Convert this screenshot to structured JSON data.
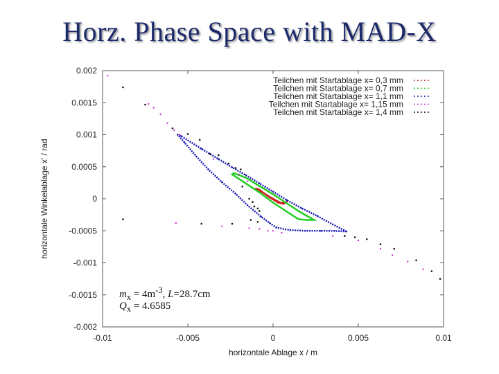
{
  "slide": {
    "title": "Horz. Phase Space with MAD-X"
  },
  "notes": {
    "m_label": "m",
    "m_sub": "x",
    "m_value": " = 4m",
    "m_exp": "-3",
    "l_sep": ", ",
    "l_label": "L",
    "l_value": "=28.7cm",
    "q_label": "Q",
    "q_sub": "x",
    "q_value": " = 4.6585"
  },
  "chart_data": {
    "type": "scatter",
    "xlabel": "horizontale Ablage x / m",
    "ylabel": "horizontale Winkelablage x' / rad",
    "xlim": [
      -0.01,
      0.01
    ],
    "ylim": [
      -0.002,
      0.002
    ],
    "xticks": [
      -0.01,
      -0.005,
      0,
      0.005,
      0.01
    ],
    "xtick_labels": [
      "-0.01",
      "-0.005",
      "0",
      "0.005",
      "0.01"
    ],
    "yticks": [
      -0.002,
      -0.0015,
      -0.001,
      -0.0005,
      0,
      0.0005,
      0.001,
      0.0015,
      0.002
    ],
    "ytick_labels": [
      "-0.002",
      "-0.0015",
      "-0.001",
      "-0.0005",
      "0",
      "0.0005",
      "0.001",
      "0.0015",
      "0.002"
    ],
    "grid": false,
    "legend_position": "top-right",
    "series": [
      {
        "name": "Teilchen mit Startablage x= 0,3 mm",
        "color": "#cc1f1f",
        "marker": "dot",
        "points": [
          [
            0.0008,
            -5e-05
          ],
          [
            0.0006,
            -8e-05
          ],
          [
            0.0003,
            -6e-05
          ],
          [
            0,
            -1e-05
          ],
          [
            -0.0003,
            4e-05
          ],
          [
            -0.0008,
            0.00014
          ],
          [
            -0.001,
            0.00016
          ],
          [
            -0.0008,
            0.00013
          ],
          [
            -0.0005,
            8e-05
          ],
          [
            -0.0002,
            3e-05
          ],
          [
            0.0002,
            -3e-05
          ],
          [
            0.0005,
            -7e-05
          ],
          [
            0.0008,
            -5e-05
          ]
        ]
      },
      {
        "name": "Teilchen mit Startablage x= 0,7 mm",
        "color": "#22cc22",
        "marker": "dot",
        "points": [
          [
            0.002,
            -0.00033
          ],
          [
            0.0015,
            -0.00032
          ],
          [
            0.0008,
            -0.0002
          ],
          [
            0,
            -6e-05
          ],
          [
            -0.0008,
            0.0001
          ],
          [
            -0.0016,
            0.00024
          ],
          [
            -0.0024,
            0.00038
          ],
          [
            -0.0023,
            0.0004
          ],
          [
            -0.0016,
            0.00033
          ],
          [
            -0.0008,
            0.0002
          ],
          [
            0,
            7e-05
          ],
          [
            0.0008,
            -7e-05
          ],
          [
            0.0016,
            -0.00021
          ],
          [
            0.0024,
            -0.00033
          ],
          [
            0.002,
            -0.00033
          ]
        ]
      },
      {
        "name": "Teilchen mit Startablage x= 1,1 mm",
        "color": "#1a1ab4",
        "marker": "dot",
        "points": [
          [
            0.0043,
            -0.00051
          ],
          [
            0.0035,
            -0.0004
          ],
          [
            0.0026,
            -0.00027
          ],
          [
            0.0017,
            -0.00015
          ],
          [
            0.0008,
            -2e-05
          ],
          [
            0,
            0.00011
          ],
          [
            -0.0008,
            0.00024
          ],
          [
            -0.0016,
            0.00037
          ],
          [
            -0.0024,
            0.00049
          ],
          [
            -0.0032,
            0.00062
          ],
          [
            -0.0042,
            0.00078
          ],
          [
            -0.0054,
            0.00098
          ],
          [
            -0.0056,
            0.001
          ],
          [
            -0.0052,
            0.00088
          ],
          [
            -0.0045,
            0.00066
          ],
          [
            -0.0038,
            0.00046
          ],
          [
            -0.003,
            0.00026
          ],
          [
            -0.0022,
            8e-05
          ],
          [
            -0.0015,
            -0.0001
          ],
          [
            -0.0007,
            -0.00028
          ],
          [
            -0.0002,
            -0.00038
          ],
          [
            0.0002,
            -0.00045
          ],
          [
            0.001,
            -0.00049
          ],
          [
            0.002,
            -0.0005
          ],
          [
            0.0028,
            -0.0005
          ],
          [
            0.0036,
            -0.0005
          ],
          [
            0.0043,
            -0.00051
          ]
        ]
      },
      {
        "name": "Teilchen mit Startablage x= 1,15 mm",
        "color": "#cc33cc",
        "marker": "dot",
        "points": [
          [
            -0.0097,
            0.00192
          ],
          [
            -0.0073,
            0.00148
          ],
          [
            -0.007,
            0.00142
          ],
          [
            -0.0066,
            0.00132
          ],
          [
            -0.0062,
            0.00118
          ],
          [
            -0.0058,
            0.00107
          ],
          [
            -0.0055,
            0.001
          ],
          [
            -0.0035,
            0.00062
          ],
          [
            -0.002,
            0.00038
          ],
          [
            -0.0015,
            0.00027
          ],
          [
            -0.0057,
            -0.00038
          ],
          [
            -0.003,
            -0.00043
          ],
          [
            -0.0014,
            -0.00046
          ],
          [
            -0.0008,
            -0.00047
          ],
          [
            -0.0003,
            -0.0005
          ],
          [
            0,
            -0.0005
          ],
          [
            0.0005,
            -0.00053
          ],
          [
            0.0035,
            -0.00058
          ],
          [
            0.005,
            -0.00065
          ],
          [
            0.0063,
            -0.00078
          ],
          [
            0.007,
            -0.00088
          ],
          [
            0.0079,
            -0.00098
          ],
          [
            0.0088,
            -0.0011
          ]
        ]
      },
      {
        "name": "Teilchen mit Startablage x= 1,4 mm",
        "color": "#111111",
        "marker": "dot",
        "points": [
          [
            -0.0088,
            0.00174
          ],
          [
            -0.0075,
            0.00147
          ],
          [
            -0.0059,
            0.0011
          ],
          [
            -0.005,
            0.00101
          ],
          [
            -0.0043,
            0.00092
          ],
          [
            -0.0037,
            0.0007
          ],
          [
            -0.0032,
            0.00068
          ],
          [
            -0.0026,
            0.00055
          ],
          [
            -0.0022,
            0.00048
          ],
          [
            -0.0019,
            0.00046
          ],
          [
            -0.0018,
            0.00019
          ],
          [
            -0.0014,
            0
          ],
          [
            -0.0012,
            -5e-05
          ],
          [
            -0.0011,
            -0.00012
          ],
          [
            -0.0009,
            -0.00015
          ],
          [
            -0.0008,
            -0.00019
          ],
          [
            -0.0013,
            -0.00033
          ],
          [
            -0.0009,
            -0.00036
          ],
          [
            -0.0088,
            -0.00032
          ],
          [
            -0.0042,
            -0.00039
          ],
          [
            -0.0024,
            -0.00039
          ],
          [
            0.0042,
            -0.00058
          ],
          [
            0.0048,
            -0.0006
          ],
          [
            0.0055,
            -0.00063
          ],
          [
            0.0063,
            -0.00071
          ],
          [
            0.0071,
            -0.00078
          ],
          [
            0.0084,
            -0.00096
          ],
          [
            0.0093,
            -0.00113
          ],
          [
            0.0098,
            -0.00125
          ]
        ]
      }
    ]
  }
}
